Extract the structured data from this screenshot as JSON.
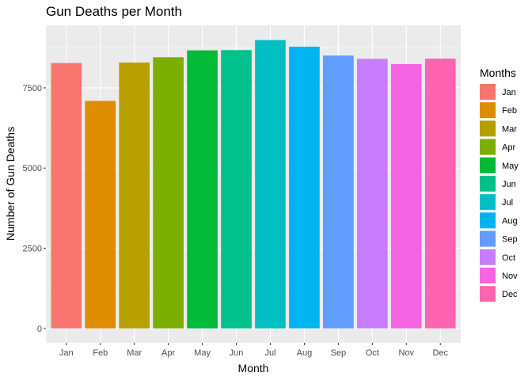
{
  "chart_data": {
    "type": "bar",
    "title": "Gun Deaths per Month",
    "xlabel": "Month",
    "ylabel": "Number of Gun Deaths",
    "categories": [
      "Jan",
      "Feb",
      "Mar",
      "Apr",
      "May",
      "Jun",
      "Jul",
      "Aug",
      "Sep",
      "Oct",
      "Nov",
      "Dec"
    ],
    "values": [
      8273,
      7093,
      8289,
      8455,
      8669,
      8677,
      8989,
      8783,
      8508,
      8406,
      8243,
      8413
    ],
    "colors": [
      "#F8766D",
      "#DE8C00",
      "#B79F00",
      "#7CAE00",
      "#00BA38",
      "#00C08B",
      "#00BFC4",
      "#00B4F0",
      "#619CFF",
      "#C77CFF",
      "#F564E3",
      "#FF64B0"
    ],
    "yticks": [
      0,
      2500,
      5000,
      7500
    ],
    "ylim": [
      -450,
      9450
    ],
    "grid": true,
    "panel_background": "#EBEBEB",
    "legend": {
      "title": "Months",
      "position": "right",
      "entries": [
        "Jan",
        "Feb",
        "Mar",
        "Apr",
        "May",
        "Jun",
        "Jul",
        "Aug",
        "Sep",
        "Oct",
        "Nov",
        "Dec"
      ]
    }
  }
}
